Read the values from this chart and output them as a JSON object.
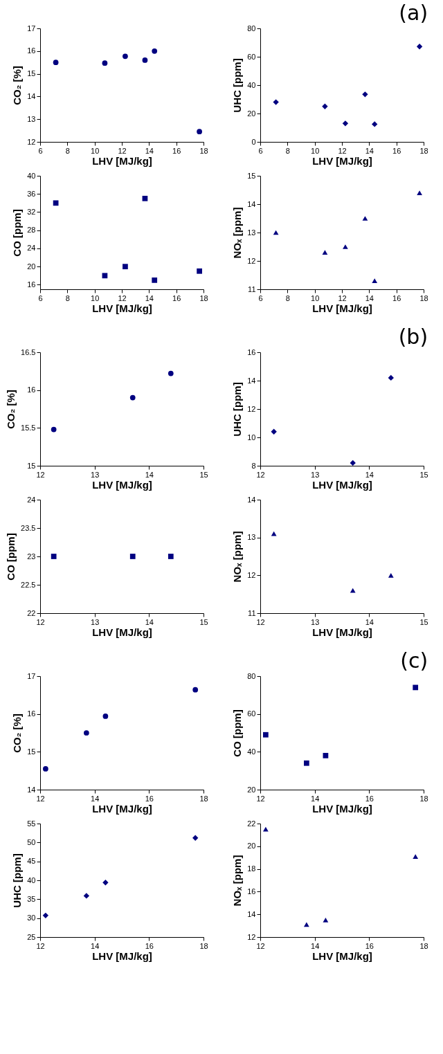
{
  "chart_data": [
    {
      "type": "scatter",
      "xlabel": "LHV [MJ/kg]",
      "ylabel": "CO₂ [%]",
      "x": [
        7.15,
        10.75,
        12.25,
        13.7,
        14.4,
        17.7
      ],
      "values": [
        15.5,
        15.47,
        15.77,
        15.6,
        16.0,
        12.45
      ],
      "color": "#000080",
      "marker": "circle",
      "xlim": [
        6,
        18
      ],
      "xticks": [
        6,
        8,
        10,
        12,
        14,
        16,
        18
      ],
      "ylim": [
        12,
        17
      ],
      "yticks": [
        12,
        13,
        14,
        15,
        16,
        17
      ]
    },
    {
      "type": "scatter",
      "title": "(a)",
      "xlabel": "LHV [MJ/kg]",
      "ylabel": "UHC [ppm]",
      "x": [
        7.15,
        10.75,
        12.25,
        13.7,
        14.4,
        17.7
      ],
      "values": [
        28,
        25,
        13,
        33.5,
        12.5,
        67.2
      ],
      "color": "#000080",
      "marker": "diamond",
      "xlim": [
        6,
        18
      ],
      "xticks": [
        6,
        8,
        10,
        12,
        14,
        16,
        18
      ],
      "ylim": [
        0,
        80
      ],
      "yticks": [
        0,
        20,
        40,
        60,
        80
      ]
    },
    {
      "type": "scatter",
      "xlabel": "LHV [MJ/kg]",
      "ylabel": "CO [ppm]",
      "x": [
        7.15,
        10.75,
        12.25,
        13.7,
        14.4,
        17.7
      ],
      "values": [
        34,
        18,
        20,
        35,
        17,
        19
      ],
      "color": "#000080",
      "marker": "square",
      "xlim": [
        6,
        18
      ],
      "xticks": [
        6,
        8,
        10,
        12,
        14,
        16,
        18
      ],
      "ylim": [
        15,
        40
      ],
      "yticks": [
        16,
        20,
        24,
        28,
        32,
        36,
        40
      ]
    },
    {
      "type": "scatter",
      "xlabel": "LHV [MJ/kg]",
      "ylabel": "NOₓ [ppm]",
      "x": [
        7.15,
        10.75,
        12.25,
        13.7,
        14.4,
        17.7
      ],
      "values": [
        13.0,
        12.3,
        12.5,
        13.5,
        11.3,
        14.4
      ],
      "color": "#000080",
      "marker": "triangle",
      "xlim": [
        6,
        18
      ],
      "xticks": [
        6,
        8,
        10,
        12,
        14,
        16,
        18
      ],
      "ylim": [
        11,
        15
      ],
      "yticks": [
        11,
        12,
        13,
        14,
        15
      ]
    },
    {
      "type": "scatter",
      "xlabel": "LHV [MJ/kg]",
      "ylabel": "CO₂ [%]",
      "x": [
        12.25,
        13.7,
        14.4
      ],
      "values": [
        15.48,
        15.9,
        16.22
      ],
      "color": "#000080",
      "marker": "circle",
      "xlim": [
        12,
        15
      ],
      "xticks": [
        12,
        13,
        14,
        15
      ],
      "ylim": [
        15,
        16.5
      ],
      "yticks": [
        15,
        15.5,
        16,
        16.5
      ]
    },
    {
      "type": "scatter",
      "title": "(b)",
      "xlabel": "LHV [MJ/kg]",
      "ylabel": "UHC [ppm]",
      "x": [
        12.25,
        13.7,
        14.4
      ],
      "values": [
        10.4,
        8.2,
        14.2
      ],
      "color": "#000080",
      "marker": "diamond",
      "xlim": [
        12,
        15
      ],
      "xticks": [
        12,
        13,
        14,
        15
      ],
      "ylim": [
        8,
        16
      ],
      "yticks": [
        8,
        10,
        12,
        14,
        16
      ]
    },
    {
      "type": "scatter",
      "xlabel": "LHV [MJ/kg]",
      "ylabel": "CO [ppm]",
      "x": [
        12.25,
        13.7,
        14.4
      ],
      "values": [
        23,
        23,
        23
      ],
      "color": "#000080",
      "marker": "square",
      "xlim": [
        12,
        15
      ],
      "xticks": [
        12,
        13,
        14,
        15
      ],
      "ylim": [
        22,
        24
      ],
      "yticks": [
        22,
        22.5,
        23,
        23.5,
        24
      ]
    },
    {
      "type": "scatter",
      "xlabel": "LHV [MJ/kg]",
      "ylabel": "NOₓ [ppm]",
      "x": [
        12.25,
        13.7,
        14.4
      ],
      "values": [
        13.1,
        11.6,
        12.0
      ],
      "color": "#000080",
      "marker": "triangle",
      "xlim": [
        12,
        15
      ],
      "xticks": [
        12,
        13,
        14,
        15
      ],
      "ylim": [
        11,
        14
      ],
      "yticks": [
        11,
        12,
        13,
        14
      ]
    },
    {
      "type": "scatter",
      "xlabel": "LHV [MJ/kg]",
      "ylabel": "CO₂ [%]",
      "x": [
        12.2,
        13.7,
        14.4,
        17.7
      ],
      "values": [
        14.55,
        15.5,
        15.94,
        16.64
      ],
      "color": "#000080",
      "marker": "circle",
      "xlim": [
        12,
        18
      ],
      "xticks": [
        12,
        14,
        16,
        18
      ],
      "ylim": [
        14,
        17
      ],
      "yticks": [
        14,
        15,
        16,
        17
      ]
    },
    {
      "type": "scatter",
      "title": "(c)",
      "xlabel": "LHV [MJ/kg]",
      "ylabel": "CO [ppm]",
      "x": [
        12.2,
        13.7,
        14.4,
        17.7
      ],
      "values": [
        49,
        34,
        38,
        74
      ],
      "color": "#000080",
      "marker": "square",
      "xlim": [
        12,
        18
      ],
      "xticks": [
        12,
        14,
        16,
        18
      ],
      "ylim": [
        20,
        80
      ],
      "yticks": [
        20,
        40,
        60,
        80
      ]
    },
    {
      "type": "scatter",
      "xlabel": "LHV [MJ/kg]",
      "ylabel": "UHC [ppm]",
      "x": [
        12.2,
        13.7,
        14.4,
        17.7
      ],
      "values": [
        30.7,
        35.9,
        39.4,
        51.2
      ],
      "color": "#000080",
      "marker": "diamond",
      "xlim": [
        12,
        18
      ],
      "xticks": [
        12,
        14,
        16,
        18
      ],
      "ylim": [
        25,
        55
      ],
      "yticks": [
        25,
        30,
        35,
        40,
        45,
        50,
        55
      ]
    },
    {
      "type": "scatter",
      "xlabel": "LHV [MJ/kg]",
      "ylabel": "NOₓ [ppm]",
      "x": [
        12.2,
        13.7,
        14.4,
        17.7
      ],
      "values": [
        21.5,
        13.1,
        13.5,
        19.1
      ],
      "color": "#000080",
      "marker": "triangle",
      "xlim": [
        12,
        18
      ],
      "xticks": [
        12,
        14,
        16,
        18
      ],
      "ylim": [
        12,
        22
      ],
      "yticks": [
        12,
        14,
        16,
        18,
        20,
        22
      ]
    }
  ]
}
